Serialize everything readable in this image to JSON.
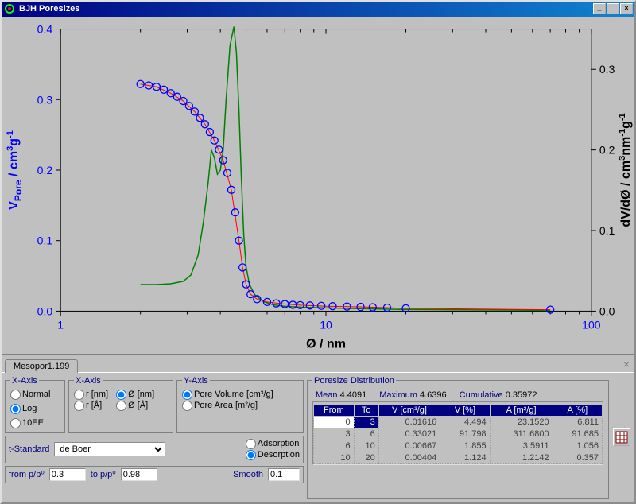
{
  "window": {
    "title": "BJH Poresizes"
  },
  "chart": {
    "type": "line+scatter",
    "x_axis": {
      "label": "Ø / nm",
      "scale": "log",
      "min": 1,
      "max": 100,
      "ticks": [
        1,
        10,
        100
      ],
      "minor_per_decade": [
        2,
        3,
        4,
        5,
        6,
        7,
        8,
        9
      ],
      "label_color": "#000000",
      "tick_color": "#0000ff"
    },
    "y_left": {
      "label": "V_Pore / cm³g⁻¹",
      "min": 0.0,
      "max": 0.4,
      "ticks": [
        0.0,
        0.1,
        0.2,
        0.3,
        0.4
      ],
      "label_color": "#0000ff",
      "tick_color": "#0000ff"
    },
    "y_right": {
      "label": "dV/dØ / cm³nm⁻¹g⁻¹",
      "min": 0.0,
      "max": 0.35,
      "ticks": [
        0.0,
        0.1,
        0.2,
        0.3
      ],
      "label_color": "#000000",
      "tick_color": "#000000"
    },
    "background": "#c0c0c0",
    "series": {
      "scatter": {
        "color": "#0000ff",
        "marker": "circle",
        "marker_fill": "none",
        "marker_size": 9,
        "axis": "left",
        "points": [
          [
            2,
            0.322
          ],
          [
            2.15,
            0.32
          ],
          [
            2.3,
            0.318
          ],
          [
            2.45,
            0.314
          ],
          [
            2.6,
            0.309
          ],
          [
            2.75,
            0.304
          ],
          [
            2.9,
            0.298
          ],
          [
            3.05,
            0.291
          ],
          [
            3.2,
            0.283
          ],
          [
            3.35,
            0.274
          ],
          [
            3.5,
            0.265
          ],
          [
            3.65,
            0.254
          ],
          [
            3.8,
            0.242
          ],
          [
            3.95,
            0.229
          ],
          [
            4.1,
            0.214
          ],
          [
            4.25,
            0.196
          ],
          [
            4.4,
            0.172
          ],
          [
            4.55,
            0.14
          ],
          [
            4.7,
            0.1
          ],
          [
            4.85,
            0.062
          ],
          [
            5.0,
            0.038
          ],
          [
            5.2,
            0.024
          ],
          [
            5.5,
            0.017
          ],
          [
            6,
            0.013
          ],
          [
            6.5,
            0.011
          ],
          [
            7,
            0.01
          ],
          [
            7.5,
            0.009
          ],
          [
            8,
            0.0085
          ],
          [
            8.7,
            0.008
          ],
          [
            9.6,
            0.0075
          ],
          [
            10.6,
            0.007
          ],
          [
            12,
            0.0065
          ],
          [
            13.5,
            0.006
          ],
          [
            15,
            0.0055
          ],
          [
            17,
            0.005
          ],
          [
            20,
            0.004
          ],
          [
            70,
            0.002
          ]
        ]
      },
      "line_red": {
        "color": "#ff0000",
        "line_width": 1,
        "axis": "left",
        "points": [
          [
            2,
            0.322
          ],
          [
            2.3,
            0.318
          ],
          [
            2.6,
            0.309
          ],
          [
            2.9,
            0.298
          ],
          [
            3.2,
            0.283
          ],
          [
            3.5,
            0.265
          ],
          [
            3.8,
            0.242
          ],
          [
            4.1,
            0.214
          ],
          [
            4.4,
            0.172
          ],
          [
            4.7,
            0.1
          ],
          [
            4.85,
            0.062
          ],
          [
            5.0,
            0.038
          ],
          [
            5.2,
            0.024
          ],
          [
            5.5,
            0.017
          ],
          [
            6,
            0.013
          ],
          [
            7,
            0.01
          ],
          [
            8,
            0.0085
          ],
          [
            10,
            0.007
          ],
          [
            14,
            0.006
          ],
          [
            20,
            0.004
          ],
          [
            70,
            0.002
          ]
        ]
      },
      "line_green": {
        "color": "#008000",
        "line_width": 1.5,
        "axis": "right",
        "points": [
          [
            2,
            0.033
          ],
          [
            2.3,
            0.033
          ],
          [
            2.6,
            0.034
          ],
          [
            2.9,
            0.037
          ],
          [
            3.1,
            0.045
          ],
          [
            3.3,
            0.07
          ],
          [
            3.45,
            0.11
          ],
          [
            3.6,
            0.16
          ],
          [
            3.7,
            0.2
          ],
          [
            3.8,
            0.19
          ],
          [
            3.9,
            0.17
          ],
          [
            4.0,
            0.175
          ],
          [
            4.1,
            0.2
          ],
          [
            4.2,
            0.26
          ],
          [
            4.35,
            0.33
          ],
          [
            4.5,
            0.353
          ],
          [
            4.6,
            0.32
          ],
          [
            4.7,
            0.25
          ],
          [
            4.8,
            0.165
          ],
          [
            4.9,
            0.095
          ],
          [
            5.0,
            0.055
          ],
          [
            5.15,
            0.033
          ],
          [
            5.4,
            0.02
          ],
          [
            5.8,
            0.012
          ],
          [
            6.3,
            0.008
          ],
          [
            7,
            0.006
          ],
          [
            8,
            0.005
          ],
          [
            10,
            0.004
          ],
          [
            14,
            0.003
          ],
          [
            20,
            0.002
          ],
          [
            40,
            0.0015
          ],
          [
            70,
            0.001
          ]
        ]
      }
    }
  },
  "tab": {
    "label": "Mesopor1.199"
  },
  "xaxis_scale": {
    "legend": "X-Axis",
    "options": [
      "Normal",
      "Log",
      "10EE"
    ],
    "selected": "Log"
  },
  "xaxis_var": {
    "legend": "X-Axis",
    "r_nm": "r [nm]",
    "d_nm": "Ø [nm]",
    "r_A": "r [Å]",
    "d_A": "Ø [Å]",
    "selected": "d_nm"
  },
  "yaxis": {
    "legend": "Y-Axis",
    "options": [
      "Pore Volume [cm³/g]",
      "Pore Area [m²/g]"
    ],
    "selected": "Pore Volume [cm³/g]"
  },
  "tstandard": {
    "label": "t-Standard",
    "value": "de Boer"
  },
  "sorption": {
    "options": [
      "Adsorption",
      "Desorption"
    ],
    "selected": "Desorption"
  },
  "range": {
    "from_label": "from p/p⁰",
    "from": "0.3",
    "to_label": "to p/p⁰",
    "to": "0.98",
    "smooth_label": "Smooth",
    "smooth": "0.1"
  },
  "dist": {
    "legend": "Poresize Distribution",
    "stats": {
      "mean_label": "Mean",
      "mean": "4.4091",
      "max_label": "Maximum",
      "max": "4.6396",
      "cum_label": "Cumulative",
      "cum": "0.35972"
    },
    "columns": [
      "From",
      "To",
      "V [cm³/g]",
      "V [%]",
      "A [m²/g]",
      "A [%]"
    ],
    "rows": [
      [
        "0",
        "3",
        "0.01616",
        "4.494",
        "23.1520",
        "6.811"
      ],
      [
        "3",
        "6",
        "0.33021",
        "91.798",
        "311.6800",
        "91.685"
      ],
      [
        "6",
        "10",
        "0.00667",
        "1.855",
        "3.5911",
        "1.056"
      ],
      [
        "10",
        "20",
        "0.00404",
        "1.124",
        "1.2142",
        "0.357"
      ]
    ],
    "highlight_row": 0
  }
}
